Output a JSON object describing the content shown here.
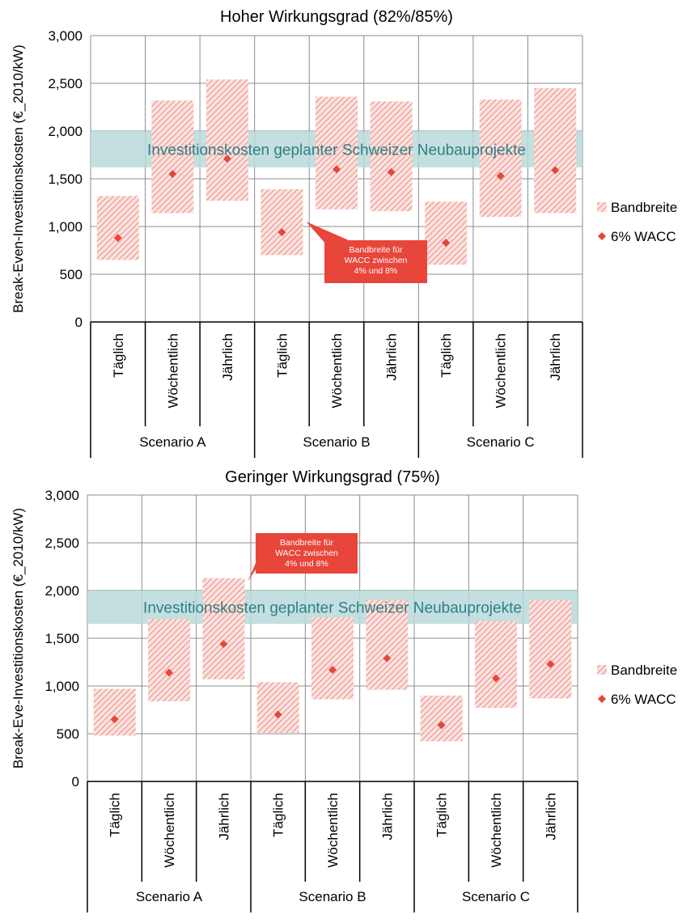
{
  "chart_data": [
    {
      "type": "bar",
      "title": "Hoher Wirkungsgrad (82%/85%)",
      "ylabel": "Break-Even-Investitionskosten (€_2010/kW)",
      "ylim": [
        0,
        3000
      ],
      "yticks": [
        "0",
        "500",
        "1,000",
        "1,500",
        "2,000",
        "2,500",
        "3,000"
      ],
      "yticks_values": [
        0,
        500,
        1000,
        1500,
        2000,
        2500,
        3000
      ],
      "groups": [
        "Scenario A",
        "Scenario B",
        "Scenario C"
      ],
      "categories": [
        "Täglich",
        "Wöchentlich",
        "Jährlich",
        "Täglich",
        "Wöchentlich",
        "Jährlich",
        "Täglich",
        "Wöchentlich",
        "Jährlich"
      ],
      "band_low": [
        650,
        1140,
        1270,
        700,
        1180,
        1160,
        600,
        1100,
        1140
      ],
      "band_high": [
        1320,
        2320,
        2540,
        1390,
        2360,
        2310,
        1260,
        2330,
        2450
      ],
      "wacc6": [
        880,
        1550,
        1710,
        940,
        1600,
        1570,
        830,
        1530,
        1590
      ],
      "reference_band": {
        "label": "Investitionskosten geplanter Schweizer Neubauprojekte",
        "low": 1620,
        "high": 2000
      },
      "annotation": {
        "lines": [
          "Bandbreite für",
          "WACC zwischen",
          "4% und 8%"
        ]
      },
      "legend": {
        "position": "right",
        "band": "Bandbreite",
        "point": "6% WACC"
      },
      "colors": {
        "band": "#f2a6a0",
        "point": "#e8463b",
        "reference": "#b9d9d9",
        "reference_text": "#2f7f86",
        "callout": "#e8463b"
      },
      "grid": true
    },
    {
      "type": "bar",
      "title": "Geringer Wirkungsgrad (75%)",
      "ylabel": "Break-Eve-Investitionskosten (€_2010/kW)",
      "ylim": [
        0,
        3000
      ],
      "yticks": [
        "0",
        "500",
        "1,000",
        "1,500",
        "2,000",
        "2,500",
        "3,000"
      ],
      "yticks_values": [
        0,
        500,
        1000,
        1500,
        2000,
        2500,
        3000
      ],
      "groups": [
        "Scenario A",
        "Scenario B",
        "Scenario C"
      ],
      "categories": [
        "Täglich",
        "Wöchentlich",
        "Jährlich",
        "Täglich",
        "Wöchentlich",
        "Jährlich",
        "Täglich",
        "Wöchentlich",
        "Jährlich"
      ],
      "band_low": [
        480,
        840,
        1070,
        510,
        860,
        960,
        420,
        770,
        870
      ],
      "band_high": [
        970,
        1700,
        2130,
        1040,
        1720,
        1900,
        900,
        1680,
        1900
      ],
      "wacc6": [
        650,
        1140,
        1440,
        700,
        1170,
        1290,
        590,
        1080,
        1230
      ],
      "reference_band": {
        "label": "Investitionskosten geplanter Schweizer Neubauprojekte",
        "low": 1650,
        "high": 2000
      },
      "annotation": {
        "lines": [
          "Bandbreite für",
          "WACC zwischen",
          "4% und 8%"
        ]
      },
      "legend": {
        "position": "right",
        "band": "Bandbreite",
        "point": "6% WACC"
      },
      "colors": {
        "band": "#f2a6a0",
        "point": "#e8463b",
        "reference": "#b9d9d9",
        "reference_text": "#2f7f86",
        "callout": "#e8463b"
      },
      "grid": true
    }
  ]
}
